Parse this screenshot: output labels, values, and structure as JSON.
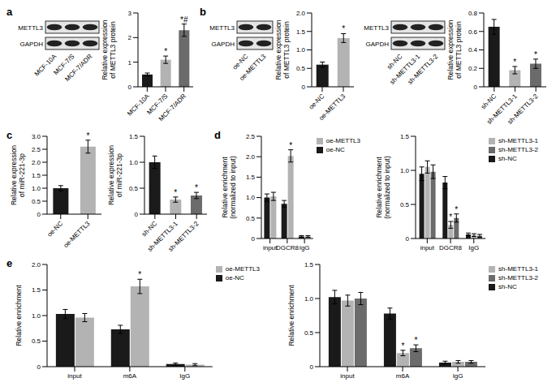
{
  "panels": [
    "a",
    "b",
    "c",
    "d",
    "e"
  ],
  "blots": [
    {
      "rows": [
        "METTL3",
        "GAPDH"
      ],
      "lanes": [
        "MCF-10A",
        "MCF-7/S",
        "MCF-7/ADR"
      ]
    },
    {
      "rows": [
        "METTL3",
        "GAPDH"
      ],
      "lanes": [
        "oe-NC",
        "oe-METTL3"
      ]
    },
    {
      "rows": [
        "METTL3",
        "GAPDH"
      ],
      "lanes": [
        "sh-NC",
        "sh-METTL3-1",
        "sh-METTL3-2"
      ]
    }
  ],
  "chart_data": [
    {
      "type": "bar",
      "ylabel": "Relative expression of METTL3 protein",
      "categories": [
        "MCF-10A",
        "MCF-7/S",
        "MCF-7/ADR"
      ],
      "values": [
        0.5,
        1.1,
        2.3
      ],
      "errors": [
        0.06,
        0.15,
        0.25
      ],
      "annotations": [
        null,
        "*",
        "*#"
      ],
      "colors": [
        "#1a1a1a",
        "#b3b3b3",
        "#6b6b6b"
      ],
      "ylim": [
        0,
        3
      ],
      "yticks": [
        0,
        1,
        2,
        3
      ]
    },
    {
      "type": "bar",
      "ylabel": "Relative expression of METTL3 protein",
      "categories": [
        "oe-NC",
        "oe-METTL3"
      ],
      "values": [
        0.6,
        1.32
      ],
      "errors": [
        0.07,
        0.12
      ],
      "annotations": [
        null,
        "*"
      ],
      "colors": [
        "#1a1a1a",
        "#b3b3b3"
      ],
      "ylim": [
        0,
        2
      ],
      "yticks": [
        0,
        {
          "value": 0.5,
          "label": "0.5"
        },
        {
          "value": 1,
          "label": "1.0"
        },
        {
          "value": 1.5,
          "label": "1.5"
        },
        {
          "value": 2,
          "label": "2.0"
        }
      ]
    },
    {
      "type": "bar",
      "ylabel": "Relative expression of METTL3 protein",
      "categories": [
        "sh-NC",
        "sh-METTL3-1",
        "sh-METTL3-2"
      ],
      "values": [
        0.65,
        0.18,
        0.25
      ],
      "errors": [
        0.08,
        0.04,
        0.05
      ],
      "annotations": [
        null,
        "*",
        "*"
      ],
      "colors": [
        "#1a1a1a",
        "#b3b3b3",
        "#6b6b6b"
      ],
      "ylim": [
        0,
        0.8
      ],
      "yticks": [
        0,
        0.2,
        0.4,
        0.6,
        0.8
      ]
    },
    {
      "type": "bar",
      "ylabel": "Relative expression of miR-221-3p",
      "categories": [
        "oe-NC",
        "oe-METTL3"
      ],
      "values": [
        1.0,
        2.6
      ],
      "errors": [
        0.1,
        0.25
      ],
      "annotations": [
        null,
        "*"
      ],
      "colors": [
        "#1a1a1a",
        "#b3b3b3"
      ],
      "ylim": [
        0,
        3
      ],
      "yticks": [
        0,
        {
          "value": 0.5,
          "label": "0.5"
        },
        {
          "value": 1,
          "label": "1.0"
        },
        {
          "value": 1.5,
          "label": "1.5"
        },
        {
          "value": 2,
          "label": "2.0"
        },
        {
          "value": 2.5,
          "label": "2.5"
        },
        {
          "value": 3,
          "label": "3.0"
        }
      ]
    },
    {
      "type": "bar",
      "ylabel": "Relative expression of miR-221-3p",
      "categories": [
        "sh-NC",
        "sh-METTL3-1",
        "sh-METTL3-2"
      ],
      "values": [
        1.0,
        0.28,
        0.36
      ],
      "errors": [
        0.12,
        0.05,
        0.06
      ],
      "annotations": [
        null,
        "*",
        "*"
      ],
      "colors": [
        "#1a1a1a",
        "#b3b3b3",
        "#6b6b6b"
      ],
      "ylim": [
        0,
        1.5
      ],
      "yticks": [
        0,
        {
          "value": 0.5,
          "label": "0.5"
        },
        {
          "value": 1,
          "label": "1.0"
        },
        {
          "value": 1.5,
          "label": "1.5"
        }
      ]
    },
    {
      "type": "bar",
      "ylabel": "Relative enrichment (normalized to input)",
      "categories": [
        "input",
        "DGCR8",
        "IgG"
      ],
      "series": [
        {
          "name": "oe-NC",
          "color": "#1a1a1a",
          "values": [
            1.0,
            0.85,
            0.05
          ],
          "errors": [
            0.09,
            0.08,
            0.02
          ],
          "annotations": [
            null,
            null,
            null
          ]
        },
        {
          "name": "oe-METTL3",
          "color": "#b3b3b3",
          "values": [
            1.03,
            2.02,
            0.05
          ],
          "errors": [
            0.1,
            0.15,
            0.02
          ],
          "annotations": [
            null,
            "*",
            null
          ]
        }
      ],
      "ylim": [
        0,
        2.5
      ],
      "yticks": [
        0,
        {
          "value": 0.5,
          "label": "0.5"
        },
        {
          "value": 1,
          "label": "1.0"
        },
        {
          "value": 1.5,
          "label": "1.5"
        },
        {
          "value": 2,
          "label": "2.0"
        },
        {
          "value": 2.5,
          "label": "2.5"
        }
      ],
      "legend": "right"
    },
    {
      "type": "bar",
      "ylabel": "Relative enrichment (normalized to input)",
      "categories": [
        "input",
        "DGCR8",
        "IgG"
      ],
      "series": [
        {
          "name": "sh-NC",
          "color": "#1a1a1a",
          "values": [
            0.95,
            0.82,
            0.06
          ],
          "errors": [
            0.1,
            0.09,
            0.02
          ],
          "annotations": [
            null,
            null,
            null
          ]
        },
        {
          "name": "sh-METTL3-1",
          "color": "#b3b3b3",
          "values": [
            1.05,
            0.2,
            0.05
          ],
          "errors": [
            0.09,
            0.05,
            0.02
          ],
          "annotations": [
            null,
            "*",
            null
          ]
        },
        {
          "name": "sh-METTL3-2",
          "color": "#6b6b6b",
          "values": [
            0.98,
            0.3,
            0.04
          ],
          "errors": [
            0.1,
            0.06,
            0.02
          ],
          "annotations": [
            null,
            "*",
            null
          ]
        }
      ],
      "ylim": [
        0,
        1.5
      ],
      "yticks": [
        0,
        {
          "value": 0.5,
          "label": "0.5"
        },
        {
          "value": 1,
          "label": "1.0"
        },
        {
          "value": 1.5,
          "label": "1.5"
        }
      ],
      "legend": "right"
    },
    {
      "type": "bar",
      "ylabel": "Relative enrichment",
      "categories": [
        "input",
        "m6A",
        "IgG"
      ],
      "series": [
        {
          "name": "oe-NC",
          "color": "#1a1a1a",
          "values": [
            1.03,
            0.73,
            0.05
          ],
          "errors": [
            0.09,
            0.08,
            0.02
          ],
          "annotations": [
            null,
            null,
            null
          ]
        },
        {
          "name": "oe-METTL3",
          "color": "#b3b3b3",
          "values": [
            0.96,
            1.57,
            0.04
          ],
          "errors": [
            0.08,
            0.14,
            0.02
          ],
          "annotations": [
            null,
            "*",
            null
          ]
        }
      ],
      "ylim": [
        0,
        2
      ],
      "yticks": [
        0,
        {
          "value": 0.5,
          "label": "0.5"
        },
        {
          "value": 1,
          "label": "1.0"
        },
        {
          "value": 1.5,
          "label": "1.5"
        },
        {
          "value": 2,
          "label": "2.0"
        }
      ],
      "legend": "right"
    },
    {
      "type": "bar",
      "ylabel": "Relative enrichment",
      "categories": [
        "input",
        "m6A",
        "IgG"
      ],
      "series": [
        {
          "name": "sh-NC",
          "color": "#1a1a1a",
          "values": [
            1.02,
            0.78,
            0.06
          ],
          "errors": [
            0.1,
            0.08,
            0.02
          ],
          "annotations": [
            null,
            null,
            null
          ]
        },
        {
          "name": "sh-METTL3-1",
          "color": "#b3b3b3",
          "values": [
            0.97,
            0.2,
            0.07
          ],
          "errors": [
            0.08,
            0.04,
            0.02
          ],
          "annotations": [
            null,
            "*",
            null
          ]
        },
        {
          "name": "sh-METTL3-2",
          "color": "#6b6b6b",
          "values": [
            1.0,
            0.27,
            0.07
          ],
          "errors": [
            0.09,
            0.05,
            0.02
          ],
          "annotations": [
            null,
            "*",
            null
          ]
        }
      ],
      "ylim": [
        0,
        1.5
      ],
      "yticks": [
        0,
        {
          "value": 0.5,
          "label": "0.5"
        },
        {
          "value": 1,
          "label": "1.0"
        },
        {
          "value": 1.5,
          "label": "1.5"
        }
      ],
      "legend": "right"
    }
  ]
}
